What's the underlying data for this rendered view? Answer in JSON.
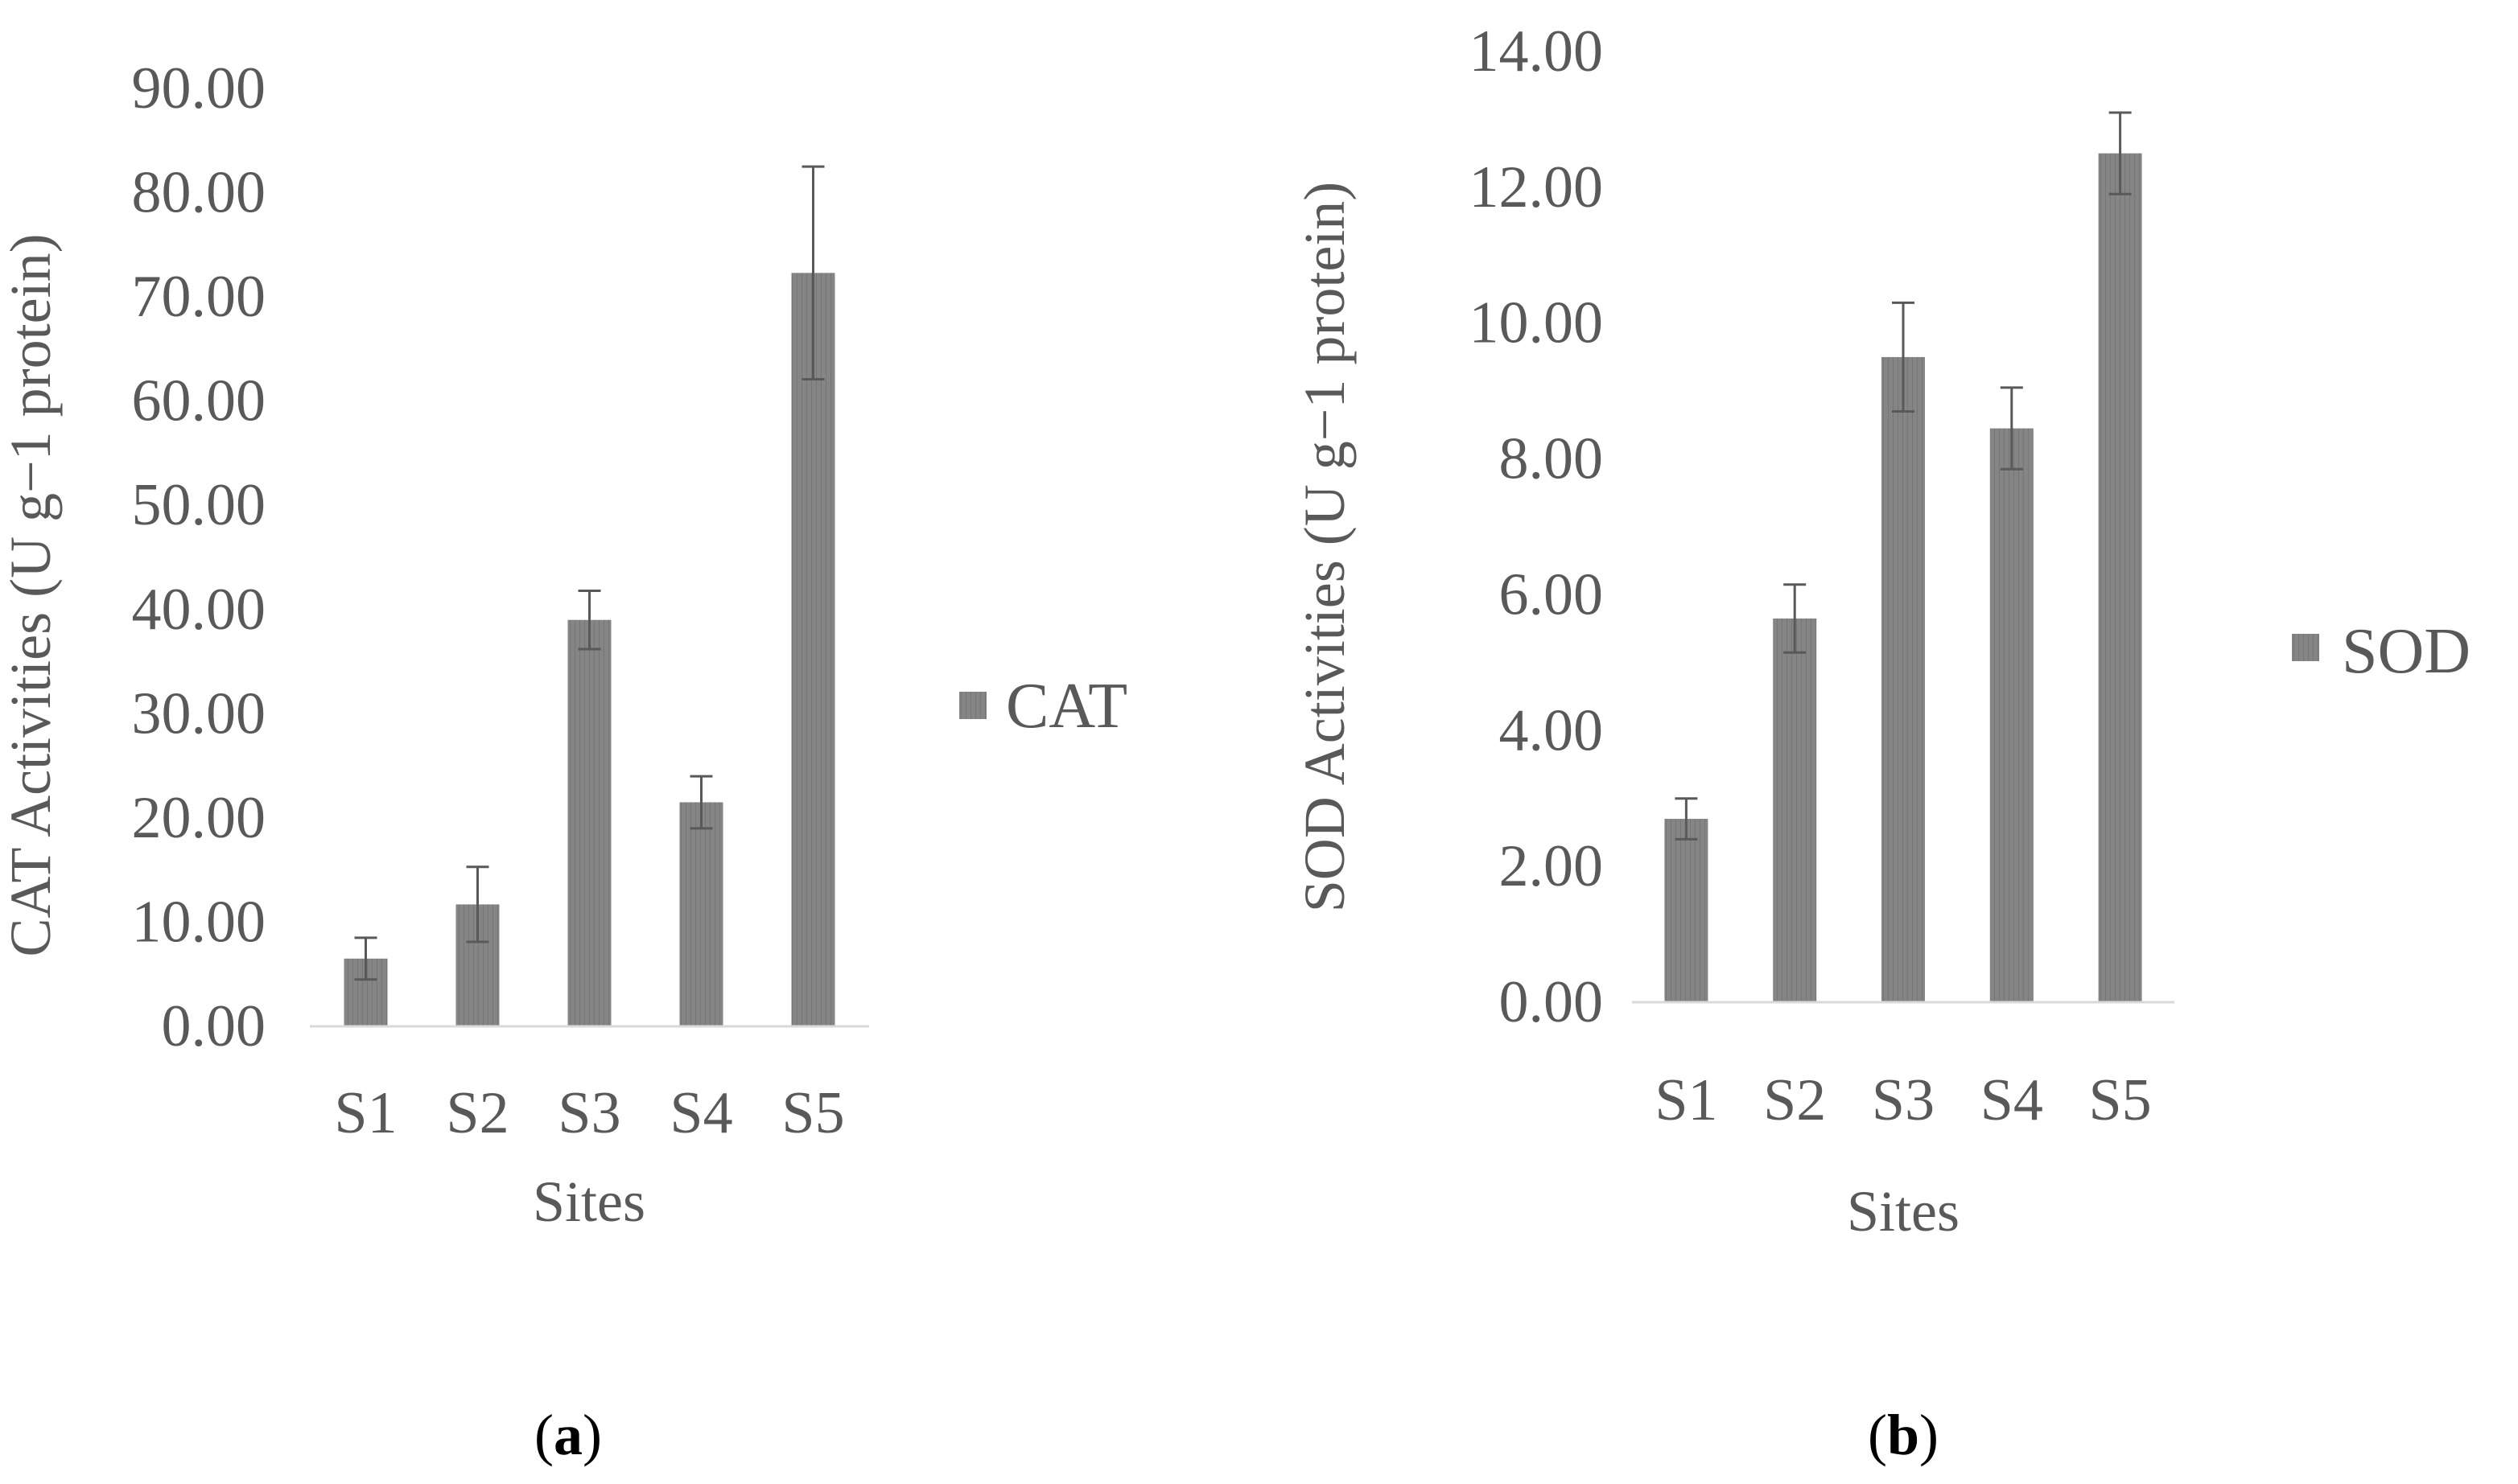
{
  "chart_data": [
    {
      "type": "bar",
      "panel": "a",
      "title": "",
      "categories": [
        "S1",
        "S2",
        "S3",
        "S4",
        "S5"
      ],
      "series": [
        {
          "name": "CAT",
          "values": [
            6.5,
            11.7,
            39.0,
            21.5,
            72.3
          ],
          "errors": [
            2.0,
            3.6,
            2.8,
            2.5,
            10.2
          ]
        }
      ],
      "xlabel": "Sites",
      "ylabel": "CAT Activities (U g−1 protein)",
      "ylim": [
        0,
        90
      ],
      "ytick_step": 10,
      "ytick_labels": [
        "0.00",
        "10.00",
        "20.00",
        "30.00",
        "40.00",
        "50.00",
        "60.00",
        "70.00",
        "80.00",
        "90.00"
      ],
      "grid": false,
      "legend": "right",
      "color": "#808080"
    },
    {
      "type": "bar",
      "panel": "b",
      "title": "",
      "categories": [
        "S1",
        "S2",
        "S3",
        "S4",
        "S5"
      ],
      "series": [
        {
          "name": "SOD",
          "values": [
            2.7,
            5.65,
            9.5,
            8.45,
            12.5
          ],
          "errors": [
            0.3,
            0.5,
            0.8,
            0.6,
            0.6
          ]
        }
      ],
      "xlabel": "Sites",
      "ylabel": "SOD Activities (U g−1 protein)",
      "ylim": [
        0,
        14
      ],
      "ytick_step": 2,
      "ytick_labels": [
        "0.00",
        "2.00",
        "4.00",
        "6.00",
        "8.00",
        "10.00",
        "12.00",
        "14.00"
      ],
      "grid": false,
      "legend": "right",
      "color": "#808080"
    }
  ],
  "panel_labels": {
    "a": {
      "open": "(",
      "letter": "a",
      "close": ")"
    },
    "b": {
      "open": "(",
      "letter": "b",
      "close": ")"
    }
  }
}
